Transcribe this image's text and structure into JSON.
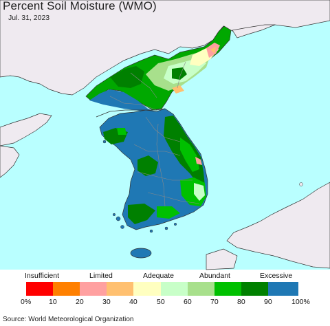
{
  "header": {
    "title": "Percent Soil Moisture (WMO)",
    "date": "Jul. 31, 2023"
  },
  "legend": {
    "categories": [
      {
        "label": "Insufficient"
      },
      {
        "label": "Limited"
      },
      {
        "label": "Adequate"
      },
      {
        "label": "Abundant"
      },
      {
        "label": "Excessive"
      }
    ],
    "bins": [
      {
        "color": "#ff0000"
      },
      {
        "color": "#ff8000"
      },
      {
        "color": "#ffa0a0"
      },
      {
        "color": "#ffc070"
      },
      {
        "color": "#ffffc0"
      },
      {
        "color": "#c8ffc8"
      },
      {
        "color": "#a8e08c"
      },
      {
        "color": "#00c000"
      },
      {
        "color": "#008000"
      },
      {
        "color": "#1f78b4"
      }
    ],
    "ticks": [
      "0%",
      "10",
      "20",
      "30",
      "40",
      "50",
      "60",
      "70",
      "80",
      "90",
      "100%"
    ]
  },
  "footer": {
    "source": "Source: World Meteorological Organization"
  },
  "map": {
    "sea_color": "#b9ffff",
    "foreign_land_color": "#efeaf0"
  }
}
